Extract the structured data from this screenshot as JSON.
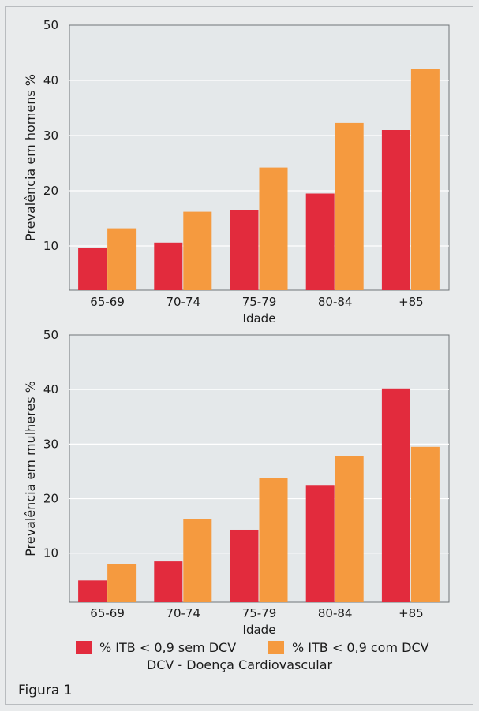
{
  "chart_data": [
    {
      "type": "bar",
      "categories": [
        "65-69",
        "70-74",
        "75-79",
        "80-84",
        "+85"
      ],
      "series": [
        {
          "name": "% ITB < 0,9 sem DCV",
          "values": [
            9.7,
            10.6,
            16.5,
            19.5,
            31.0
          ]
        },
        {
          "name": "% ITB < 0,9 com DCV",
          "values": [
            13.2,
            16.2,
            24.2,
            32.3,
            42.0
          ]
        }
      ],
      "yticks": [
        10,
        20,
        30,
        40,
        50
      ],
      "xlabel": "Idade",
      "ylabel": "Prevalência em homens %",
      "ylim": [
        2,
        50
      ],
      "grid": true
    },
    {
      "type": "bar",
      "categories": [
        "65-69",
        "70-74",
        "75-79",
        "80-84",
        "+85"
      ],
      "series": [
        {
          "name": "% ITB < 0,9 sem DCV",
          "values": [
            5.0,
            8.5,
            14.3,
            22.5,
            40.2
          ]
        },
        {
          "name": "% ITB < 0,9 com DCV",
          "values": [
            8.0,
            16.3,
            23.8,
            27.8,
            29.5
          ]
        }
      ],
      "yticks": [
        10,
        20,
        30,
        40,
        50
      ],
      "xlabel": "Idade",
      "ylabel": "Prevalência em mulheres %",
      "ylim": [
        1,
        50
      ],
      "grid": true
    }
  ],
  "legend": {
    "items": [
      {
        "label": "% ITB < 0,9 sem DCV",
        "color": "#e22b3d"
      },
      {
        "label": "% ITB < 0,9 com DCV",
        "color": "#f59a3f"
      }
    ],
    "note": "DCV - Doença Cardiovascular"
  },
  "figure_label": "Figura 1",
  "colors": {
    "series1": "#e22b3d",
    "series2": "#f59a3f",
    "plot_bg": "#e4e8ea",
    "grid": "#ffffff"
  }
}
